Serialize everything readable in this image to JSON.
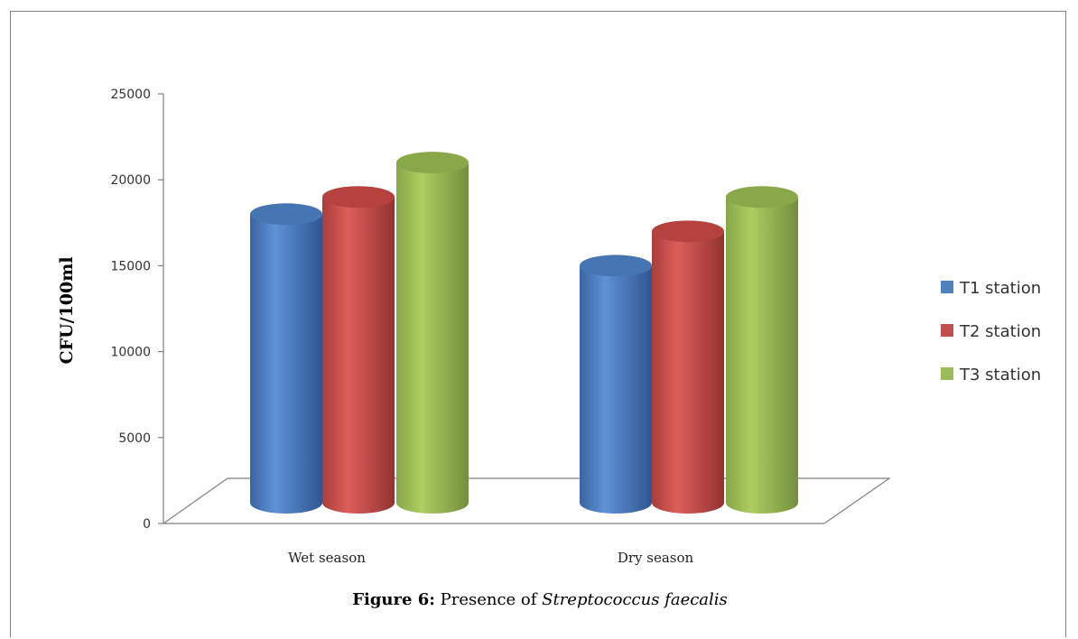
{
  "chart_data": {
    "type": "bar",
    "title": "",
    "caption": {
      "label": "Figure 6:",
      "text": " Presence of ",
      "species": "Streptococcus faecalis"
    },
    "ylabel": "CFU/100ml",
    "xlabel": "",
    "ylim": [
      0,
      25000
    ],
    "yticks": [
      0,
      5000,
      10000,
      15000,
      20000,
      25000
    ],
    "categories": [
      "Wet season",
      "Dry season"
    ],
    "series": [
      {
        "name": "T1 station",
        "values": [
          18000,
          15000
        ],
        "color": "#4f81bd"
      },
      {
        "name": "T2 station",
        "values": [
          19000,
          17000
        ],
        "color": "#c0504d"
      },
      {
        "name": "T3 station",
        "values": [
          21000,
          19000
        ],
        "color": "#9bbb59"
      }
    ],
    "legend_position": "right",
    "grid": false,
    "style": "3d-cylinder"
  }
}
